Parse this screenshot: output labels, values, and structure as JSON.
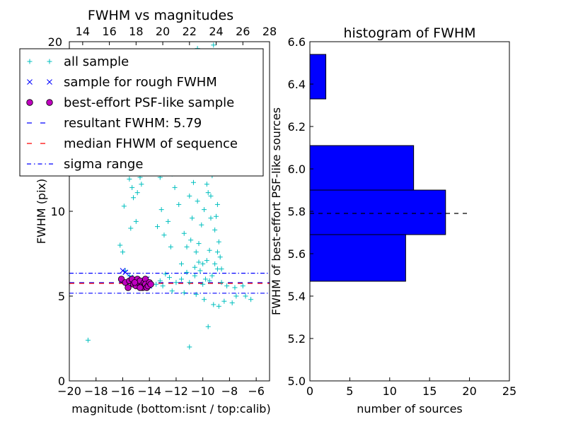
{
  "chart_data": [
    {
      "type": "scatter",
      "title": "FWHM vs magnitudes",
      "xlabel": "magnitude (bottom:isnt / top:calib)",
      "ylabel": "FWHM (pix)",
      "xlim": [
        -20,
        -5
      ],
      "ylim": [
        0,
        20
      ],
      "xticks": [
        "−20",
        "−18",
        "−16",
        "−14",
        "−12",
        "−10",
        "−8",
        "−6"
      ],
      "yticks": [
        "0",
        "5",
        "10"
      ],
      "top_xlim": [
        13,
        28
      ],
      "top_xticks": [
        "14",
        "16",
        "18",
        "20",
        "22",
        "24",
        "26",
        "28"
      ],
      "top_ylabel": "20",
      "reference_lines": {
        "resultant": 5.79,
        "median": 5.75,
        "sigma_low": 5.17,
        "sigma_high": 6.35
      },
      "legend": [
        {
          "label": "all sample",
          "marker": "+",
          "color": "#00bfbf"
        },
        {
          "label": "sample for rough FWHM",
          "marker": "x",
          "color": "#0000ff"
        },
        {
          "label": "best-effort PSF-like sample",
          "marker": "o",
          "color": "#bf00bf"
        },
        {
          "label": "resultant FWHM: 5.79",
          "marker": "dashed",
          "color": "#0000ff"
        },
        {
          "label": "median FHWM of sequence",
          "marker": "dashed",
          "color": "#ff0000"
        },
        {
          "label": "sigma range",
          "marker": "dashdot",
          "color": "#0000ff"
        }
      ],
      "series": [
        {
          "name": "all sample",
          "points": [
            [
              -18.6,
              2.4
            ],
            [
              -11.0,
              2.0
            ],
            [
              -9.6,
              3.2
            ],
            [
              -8.8,
              4.4
            ],
            [
              -8.4,
              4.7
            ],
            [
              -7.8,
              4.6
            ],
            [
              -7.5,
              5.0
            ],
            [
              -6.8,
              5.0
            ],
            [
              -6.4,
              4.8
            ],
            [
              -9.2,
              4.5
            ],
            [
              -9.9,
              4.8
            ],
            [
              -10.5,
              5.1
            ],
            [
              -11.4,
              5.2
            ],
            [
              -12.3,
              5.3
            ],
            [
              -13.0,
              5.6
            ],
            [
              -13.5,
              5.7
            ],
            [
              -12.0,
              5.8
            ],
            [
              -11.0,
              5.8
            ],
            [
              -10.0,
              5.7
            ],
            [
              -9.5,
              5.9
            ],
            [
              -8.6,
              5.8
            ],
            [
              -8.2,
              5.6
            ],
            [
              -7.6,
              5.5
            ],
            [
              -7.0,
              5.6
            ],
            [
              -12.5,
              6.1
            ],
            [
              -11.6,
              6.0
            ],
            [
              -10.6,
              6.2
            ],
            [
              -9.8,
              6.0
            ],
            [
              -13.2,
              5.9
            ],
            [
              -12.8,
              6.3
            ],
            [
              -11.2,
              6.4
            ],
            [
              -10.2,
              6.5
            ],
            [
              -9.3,
              6.2
            ],
            [
              -8.9,
              6.6
            ],
            [
              -15.8,
              6.5
            ],
            [
              -15.5,
              6.2
            ],
            [
              -16.2,
              8.0
            ],
            [
              -16.0,
              7.6
            ],
            [
              -15.4,
              9.0
            ],
            [
              -15.0,
              9.4
            ],
            [
              -15.9,
              10.3
            ],
            [
              -15.2,
              10.8
            ],
            [
              -14.9,
              11.1
            ],
            [
              -14.7,
              12.0
            ],
            [
              -14.2,
              12.6
            ],
            [
              -14.6,
              11.6
            ],
            [
              -15.3,
              11.4
            ],
            [
              -13.7,
              13.4
            ],
            [
              -14.9,
              12.9
            ],
            [
              -15.5,
              11.9
            ],
            [
              -12.1,
              11.4
            ],
            [
              -11.8,
              10.4
            ],
            [
              -12.6,
              9.4
            ],
            [
              -11.4,
              8.7
            ],
            [
              -10.9,
              8.3
            ],
            [
              -10.5,
              7.6
            ],
            [
              -11.2,
              7.9
            ],
            [
              -10.3,
              8.1
            ],
            [
              -10.1,
              9.2
            ],
            [
              -9.9,
              10.1
            ],
            [
              -10.4,
              10.6
            ],
            [
              -10.7,
              11.7
            ],
            [
              -10.2,
              12.4
            ],
            [
              -9.8,
              13.2
            ],
            [
              -9.6,
              11.1
            ],
            [
              -9.4,
              9.6
            ],
            [
              -9.1,
              8.9
            ],
            [
              -8.9,
              10.4
            ],
            [
              -9.3,
              12.1
            ],
            [
              -9.5,
              13.7
            ],
            [
              -9.2,
              14.1
            ],
            [
              -9.0,
              12.6
            ],
            [
              -8.9,
              7.6
            ],
            [
              -9.7,
              7.1
            ],
            [
              -10.0,
              6.9
            ],
            [
              -10.3,
              7.0
            ],
            [
              -8.8,
              8.2
            ],
            [
              -9.0,
              9.7
            ],
            [
              -9.4,
              10.9
            ],
            [
              -10.8,
              9.6
            ],
            [
              -11.0,
              10.9
            ],
            [
              -9.7,
              11.6
            ],
            [
              -9.9,
              12.9
            ],
            [
              -9.1,
              6.9
            ],
            [
              -8.7,
              7.3
            ],
            [
              -8.6,
              6.6
            ],
            [
              -9.5,
              7.7
            ],
            [
              -10.6,
              6.7
            ],
            [
              -11.6,
              6.9
            ],
            [
              -12.4,
              7.9
            ],
            [
              -12.9,
              8.6
            ],
            [
              -13.4,
              9.1
            ],
            [
              -13.1,
              10.1
            ],
            [
              -12.3,
              12.2
            ],
            [
              -9.6,
              19.0
            ],
            [
              -9.2,
              19.8
            ],
            [
              -10.4,
              19.6
            ],
            [
              -11.2,
              17.0
            ],
            [
              -12.4,
              17.3
            ],
            [
              -10.1,
              16.1
            ],
            [
              -9.4,
              15.6
            ],
            [
              -9.8,
              14.6
            ],
            [
              -10.6,
              14.1
            ],
            [
              -11.0,
              13.2
            ],
            [
              -13.2,
              12.0
            ]
          ]
        },
        {
          "name": "sample for rough FWHM",
          "points": [
            [
              -16.0,
              6.5
            ],
            [
              -15.8,
              6.4
            ],
            [
              -15.4,
              6.1
            ],
            [
              -15.2,
              5.9
            ],
            [
              -14.9,
              5.8
            ],
            [
              -14.6,
              5.7
            ],
            [
              -14.4,
              5.9
            ],
            [
              -14.2,
              6.0
            ],
            [
              -14.0,
              5.6
            ]
          ]
        },
        {
          "name": "best-effort PSF-like sample",
          "points": [
            [
              -16.1,
              6.0
            ],
            [
              -15.8,
              5.8
            ],
            [
              -15.6,
              5.5
            ],
            [
              -15.5,
              5.9
            ],
            [
              -15.3,
              6.0
            ],
            [
              -15.2,
              5.7
            ],
            [
              -15.0,
              5.6
            ],
            [
              -14.9,
              6.0
            ],
            [
              -14.8,
              5.8
            ],
            [
              -14.7,
              5.9
            ],
            [
              -14.6,
              5.6
            ],
            [
              -14.5,
              5.5
            ],
            [
              -14.4,
              5.8
            ],
            [
              -14.3,
              6.0
            ],
            [
              -14.3,
              5.7
            ],
            [
              -14.2,
              5.5
            ],
            [
              -14.1,
              5.6
            ],
            [
              -14.0,
              5.8
            ],
            [
              -13.9,
              5.7
            ],
            [
              -15.1,
              5.8
            ],
            [
              -14.7,
              5.5
            ]
          ]
        }
      ]
    },
    {
      "type": "bar",
      "orientation": "horizontal",
      "title": "histogram of FWHM",
      "xlabel": "number of sources",
      "ylabel": "FWHM of best-effort PSF-like sources",
      "xlim": [
        0,
        25
      ],
      "ylim": [
        5.0,
        6.6
      ],
      "xticks": [
        "0",
        "5",
        "10",
        "15",
        "20",
        "25"
      ],
      "yticks": [
        "5.0",
        "5.2",
        "5.4",
        "5.6",
        "5.8",
        "6.0",
        "6.2",
        "6.4",
        "6.6"
      ],
      "bars": [
        {
          "from": 5.47,
          "to": 5.69,
          "count": 12
        },
        {
          "from": 5.69,
          "to": 5.9,
          "count": 17
        },
        {
          "from": 5.9,
          "to": 6.11,
          "count": 13
        },
        {
          "from": 6.11,
          "to": 6.33,
          "count": 0
        },
        {
          "from": 6.33,
          "to": 6.54,
          "count": 2
        }
      ],
      "reference_line": {
        "y": 5.79,
        "x_end": 20
      },
      "bar_color": "#0000ff"
    }
  ]
}
